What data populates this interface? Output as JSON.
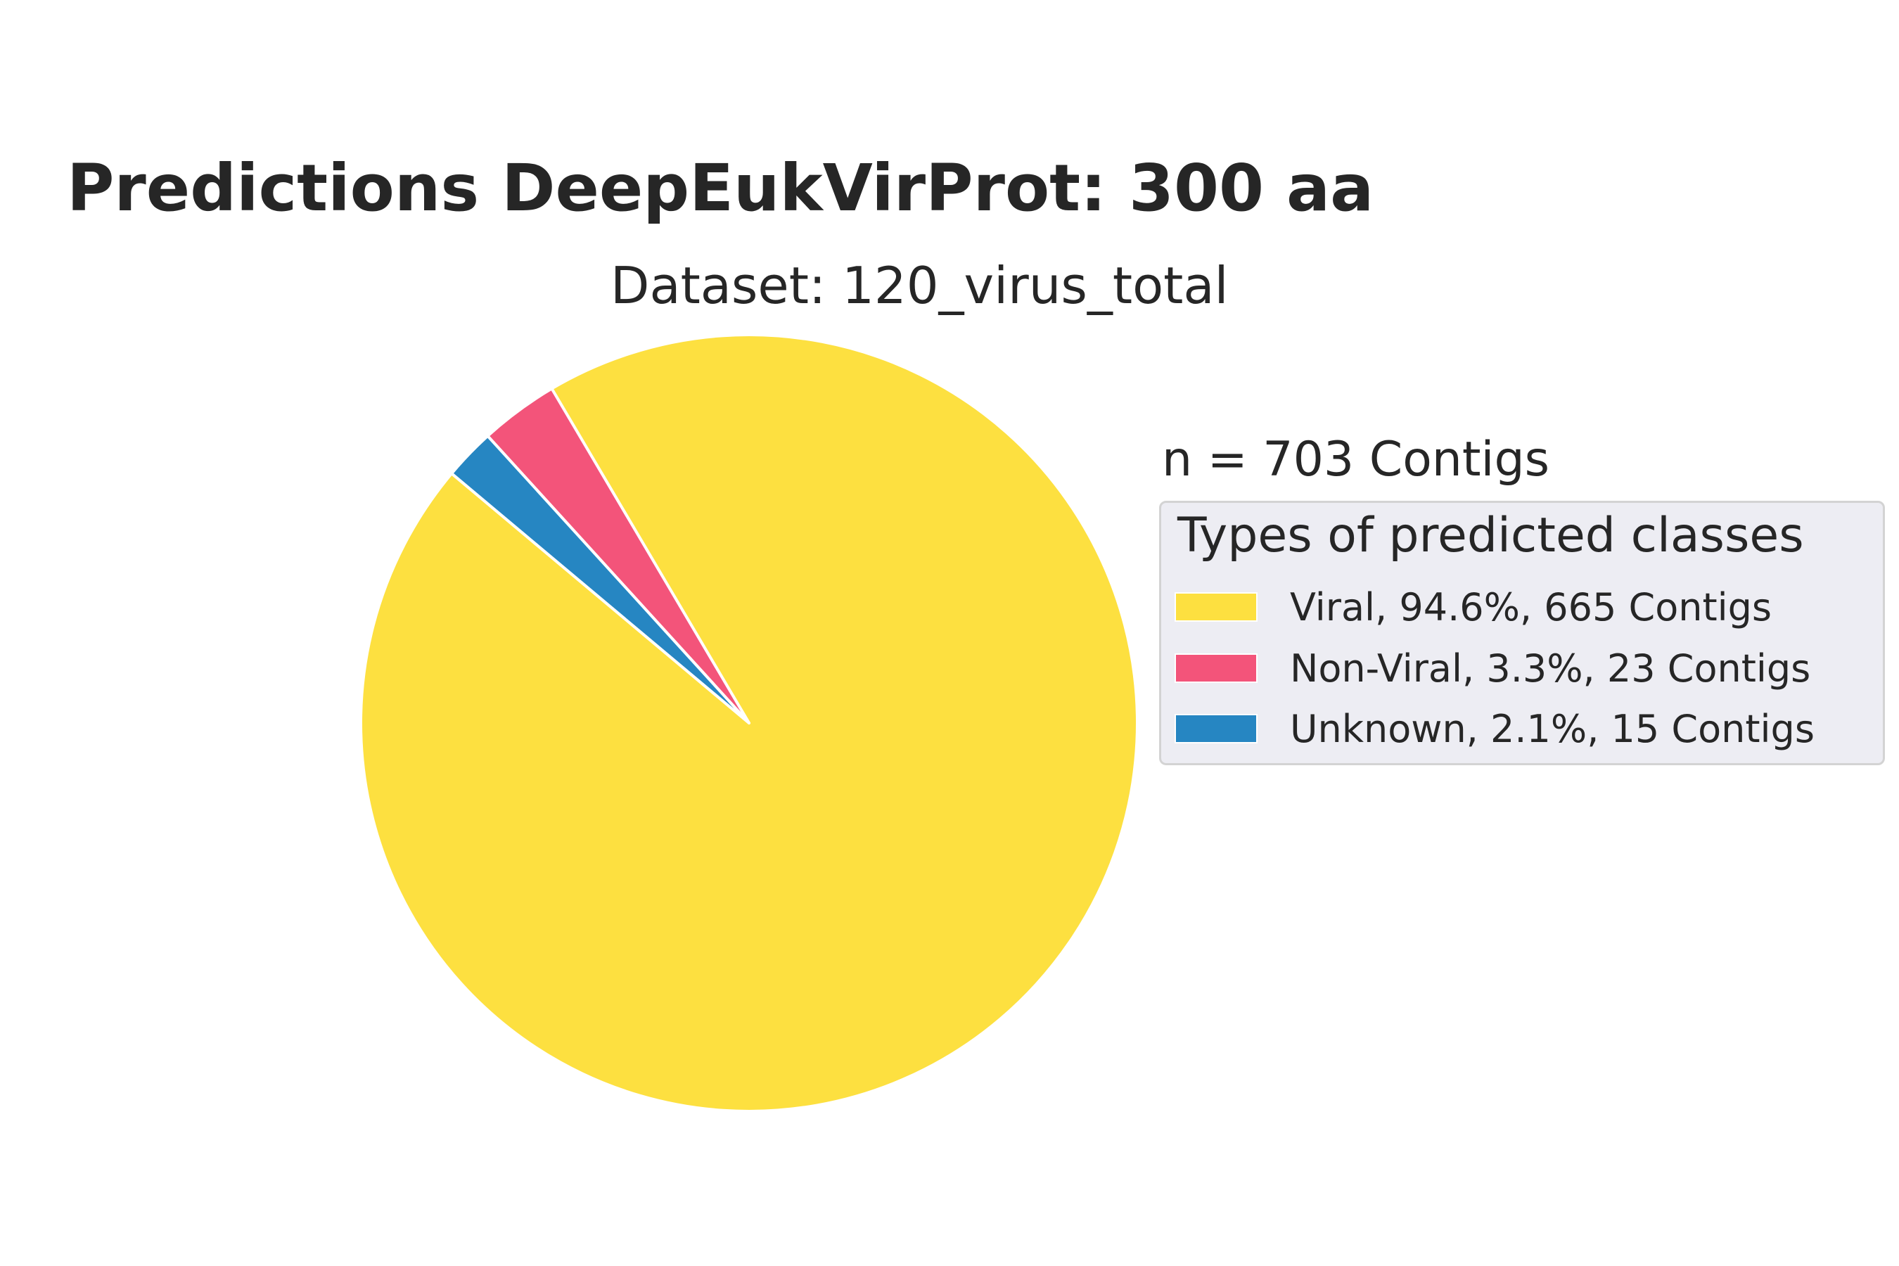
{
  "chart_data": {
    "type": "pie",
    "title": "Predictions DeepEukVirProt: 300 aa",
    "subtitle": "Dataset: 120_virus_total",
    "annotation": "n = 703 Contigs",
    "legend_title": "Types of predicted classes",
    "legend_position": "right",
    "slices": [
      {
        "label": "Viral, 94.6%, 665 Contigs",
        "category": "Viral",
        "value": 665,
        "percent": 94.6,
        "color": "#fde040"
      },
      {
        "label": "Non-Viral, 3.3%, 23 Contigs",
        "category": "Non-Viral",
        "value": 23,
        "percent": 3.3,
        "color": "#f3547a"
      },
      {
        "label": "Unknown, 2.1%, 15 Contigs",
        "category": "Unknown",
        "value": 15,
        "percent": 2.1,
        "color": "#2686c2"
      }
    ]
  }
}
